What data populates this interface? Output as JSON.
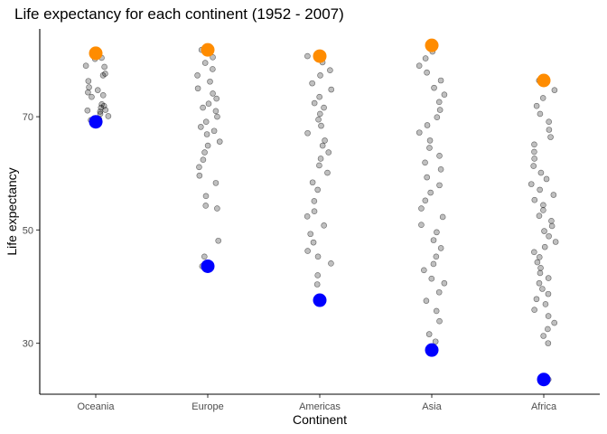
{
  "chart_data": {
    "type": "scatter",
    "title": "Life expectancy for each continent (1952 - 2007)",
    "xlabel": "Continent",
    "ylabel": "Life expectancy",
    "categories": [
      "Oceania",
      "Europe",
      "Americas",
      "Asia",
      "Africa"
    ],
    "y_ticks": [
      30,
      50,
      70
    ],
    "ylim": [
      21,
      85.5
    ],
    "grid": false,
    "legend": "none",
    "colors": {
      "points": "#000000",
      "max_marker": "#ff8c00",
      "min_marker": "#0000ff"
    },
    "point_opacity": 0.25,
    "highlights": {
      "max": [
        {
          "continent": "Oceania",
          "value": 81.2
        },
        {
          "continent": "Europe",
          "value": 81.8
        },
        {
          "continent": "Americas",
          "value": 80.7
        },
        {
          "continent": "Asia",
          "value": 82.6
        },
        {
          "continent": "Africa",
          "value": 76.4
        }
      ],
      "min": [
        {
          "continent": "Oceania",
          "value": 69.1
        },
        {
          "continent": "Europe",
          "value": 43.6
        },
        {
          "continent": "Americas",
          "value": 37.6
        },
        {
          "continent": "Asia",
          "value": 28.8
        },
        {
          "continent": "Africa",
          "value": 23.6
        }
      ]
    },
    "series": [
      {
        "continent": "Oceania",
        "values": [
          69.1,
          69.4,
          69.6,
          70.1,
          70.5,
          70.9,
          71.1,
          71.2,
          71.6,
          71.9,
          72.2,
          73.5,
          73.8,
          74.3,
          74.7,
          75.2,
          76.3,
          77.3,
          77.6,
          78.8,
          79.0,
          80.2,
          80.4,
          81.2
        ]
      },
      {
        "continent": "Europe",
        "values": [
          43.6,
          45.3,
          48.1,
          53.8,
          54.3,
          56.0,
          58.3,
          59.6,
          61.1,
          62.4,
          63.7,
          64.9,
          65.6,
          66.9,
          67.5,
          68.2,
          69.1,
          70.0,
          71.0,
          71.6,
          72.3,
          73.2,
          74.1,
          75.0,
          76.2,
          77.3,
          78.4,
          79.5,
          80.5,
          81.8
        ]
      },
      {
        "continent": "Americas",
        "values": [
          37.6,
          40.4,
          42.0,
          44.1,
          45.3,
          46.3,
          47.8,
          49.3,
          50.8,
          52.4,
          53.3,
          55.1,
          57.1,
          58.4,
          60.1,
          61.4,
          62.6,
          63.7,
          64.9,
          65.8,
          67.1,
          68.4,
          69.5,
          70.5,
          71.6,
          72.4,
          73.5,
          74.8,
          75.9,
          77.3,
          78.2,
          79.6,
          80.7
        ]
      },
      {
        "continent": "Asia",
        "values": [
          28.8,
          30.3,
          31.6,
          33.9,
          35.7,
          37.5,
          39.0,
          40.6,
          41.4,
          42.9,
          44.0,
          45.3,
          46.8,
          48.2,
          49.6,
          50.9,
          52.3,
          53.8,
          55.2,
          56.6,
          57.9,
          59.3,
          60.7,
          61.9,
          63.1,
          64.5,
          65.8,
          67.2,
          68.5,
          69.9,
          71.2,
          72.6,
          73.9,
          75.1,
          76.4,
          77.8,
          79.0,
          80.3,
          81.5,
          82.6
        ]
      },
      {
        "continent": "Africa",
        "values": [
          23.6,
          30.0,
          31.3,
          32.5,
          33.6,
          34.8,
          35.9,
          36.9,
          37.8,
          38.7,
          39.6,
          40.6,
          41.5,
          42.4,
          43.3,
          44.3,
          45.2,
          46.1,
          47.0,
          47.9,
          48.9,
          49.8,
          50.7,
          51.6,
          52.5,
          53.5,
          54.4,
          55.3,
          56.2,
          57.1,
          58.1,
          59.0,
          60.1,
          61.3,
          62.6,
          63.8,
          65.1,
          66.4,
          67.7,
          69.1,
          70.5,
          71.9,
          73.3,
          74.7,
          76.4
        ]
      }
    ]
  }
}
